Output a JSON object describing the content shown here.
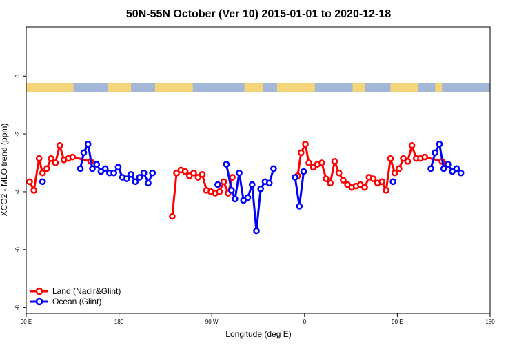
{
  "chart_data": {
    "type": "line",
    "title": "50N-55N October (Ver 10)   2015-01-01 to 2020-12-18",
    "xlabel": "Longitude (deg E)",
    "ylabel": "XCO2 - MLO trend (ppm)",
    "xlim": [
      -90,
      180
    ],
    "ylim": [
      -8.2,
      1.7
    ],
    "x_ticks": [
      {
        "value": -90,
        "label": "90 E"
      },
      {
        "value": -36,
        "label": "180"
      },
      {
        "value": 18,
        "label": "90 W"
      },
      {
        "value": 72,
        "label": "0"
      },
      {
        "value": 126,
        "label": "90 E"
      },
      {
        "value": 180,
        "label": "180"
      }
    ],
    "y_ticks": [
      {
        "value": 0,
        "label": "0"
      },
      {
        "value": -2,
        "label": "-2"
      },
      {
        "value": -4,
        "label": "-4"
      },
      {
        "value": -6,
        "label": "-6"
      },
      {
        "value": -8,
        "label": "-8"
      }
    ],
    "grid": false,
    "legend_position": "bottom-left",
    "land_mask_band": {
      "ymin": -0.55,
      "ymax": -0.25,
      "land_color": "#F5D57A",
      "ocean_color": "#A3B8D8"
    },
    "series": [
      {
        "name": "Land (Nadir&Glint)",
        "color": "#FF0000",
        "segments": [
          [
            [
              -88,
              -3.65
            ],
            [
              -85.5,
              -3.95
            ],
            [
              -82.5,
              -2.85
            ],
            [
              -80.5,
              -3.35
            ],
            [
              -78,
              -3.2
            ],
            [
              -75.5,
              -2.85
            ],
            [
              -73,
              -3.0
            ],
            [
              -70.5,
              -2.4
            ],
            [
              -68,
              -2.9
            ],
            [
              -65.5,
              -2.85
            ],
            [
              -63,
              -2.8
            ],
            [
              -52.5,
              -2.95
            ]
          ],
          [
            [
              -5,
              -4.85
            ],
            [
              -2.5,
              -3.35
            ],
            [
              0,
              -3.25
            ],
            [
              2.5,
              -3.3
            ],
            [
              5,
              -3.45
            ],
            [
              7.5,
              -3.35
            ],
            [
              10,
              -3.5
            ],
            [
              12.5,
              -3.4
            ],
            [
              15,
              -3.95
            ],
            [
              17.5,
              -4.0
            ],
            [
              20,
              -4.05
            ],
            [
              22.5,
              -4.0
            ],
            [
              25,
              -3.65
            ],
            [
              27.5,
              -4.05
            ],
            [
              30,
              -3.5
            ]
          ],
          [
            [
              68,
              -3.45
            ],
            [
              70,
              -2.65
            ],
            [
              72.5,
              -2.35
            ],
            [
              74.5,
              -3.0
            ],
            [
              77,
              -3.15
            ],
            [
              79.5,
              -3.05
            ],
            [
              82,
              -3.0
            ],
            [
              84.5,
              -3.55
            ],
            [
              87,
              -3.7
            ],
            [
              89.5,
              -2.95
            ],
            [
              92,
              -3.35
            ],
            [
              94.5,
              -3.6
            ],
            [
              97,
              -3.75
            ],
            [
              99.5,
              -3.85
            ],
            [
              102,
              -3.8
            ],
            [
              104.5,
              -3.75
            ],
            [
              107,
              -3.85
            ],
            [
              109.5,
              -3.5
            ],
            [
              112,
              -3.55
            ],
            [
              114.5,
              -3.7
            ],
            [
              117,
              -3.65
            ],
            [
              119.5,
              -3.95
            ],
            [
              122,
              -2.85
            ],
            [
              124.5,
              -3.35
            ],
            [
              127,
              -3.2
            ],
            [
              129.5,
              -2.85
            ],
            [
              132,
              -2.95
            ],
            [
              134.5,
              -2.4
            ],
            [
              137,
              -2.85
            ],
            [
              139.5,
              -2.85
            ],
            [
              142,
              -2.8
            ],
            [
              152,
              -2.95
            ],
            [
              154.5,
              -3.05
            ]
          ]
        ]
      },
      {
        "name": "Ocean (Glint)",
        "color": "#0000FF",
        "segments": [
          [
            [
              -80.5,
              -3.65
            ]
          ],
          [
            [
              -58.5,
              -3.2
            ],
            [
              -56.5,
              -2.65
            ],
            [
              -54,
              -2.35
            ],
            [
              -51.5,
              -3.2
            ],
            [
              -49,
              -3.05
            ],
            [
              -46.5,
              -3.3
            ],
            [
              -44,
              -3.2
            ],
            [
              -41.5,
              -3.35
            ],
            [
              -39,
              -3.35
            ],
            [
              -36.5,
              -3.15
            ],
            [
              -34,
              -3.5
            ],
            [
              -31.5,
              -3.55
            ],
            [
              -29,
              -3.4
            ],
            [
              -26.5,
              -3.65
            ],
            [
              -24,
              -3.5
            ],
            [
              -21.5,
              -3.35
            ],
            [
              -19,
              -3.7
            ],
            [
              -16.5,
              -3.35
            ]
          ],
          [
            [
              21.5,
              -3.75
            ]
          ],
          [
            [
              26.5,
              -3.05
            ],
            [
              29.5,
              -3.95
            ],
            [
              31.5,
              -4.25
            ],
            [
              34,
              -3.35
            ],
            [
              36.5,
              -4.3
            ],
            [
              39,
              -4.2
            ],
            [
              41.5,
              -3.75
            ],
            [
              44,
              -5.35
            ],
            [
              46.5,
              -3.9
            ],
            [
              49,
              -3.65
            ],
            [
              51.5,
              -3.7
            ],
            [
              54,
              -3.2
            ]
          ],
          [
            [
              66.5,
              -3.5
            ],
            [
              69,
              -4.5
            ],
            [
              71.5,
              -3.3
            ]
          ],
          [
            [
              123.5,
              -3.65
            ]
          ],
          [
            [
              145.5,
              -3.2
            ],
            [
              148,
              -2.65
            ],
            [
              150.5,
              -2.35
            ],
            [
              153,
              -3.2
            ],
            [
              155.5,
              -3.05
            ],
            [
              158,
              -3.3
            ],
            [
              160.5,
              -3.2
            ],
            [
              163,
              -3.35
            ]
          ]
        ]
      }
    ]
  }
}
